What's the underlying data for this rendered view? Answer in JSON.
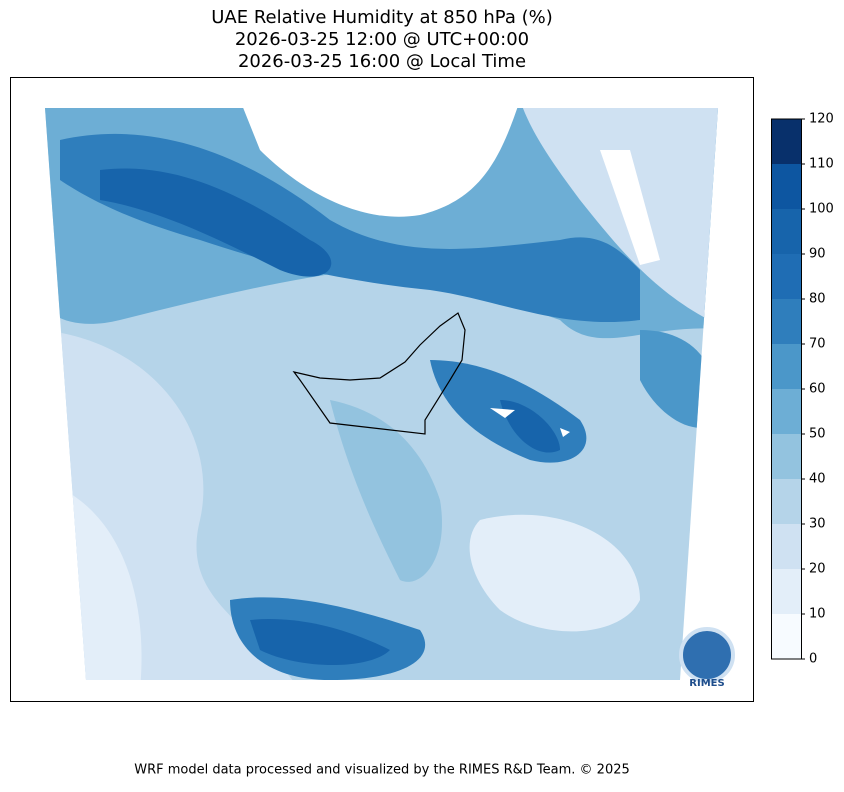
{
  "title": [
    "UAE Relative Humidity at 850 hPa (%)",
    "2026-03-25 12:00 @ UTC+00:00",
    "2026-03-25 16:00 @ Local Time"
  ],
  "colorbar": {
    "lim": [
      0,
      120
    ],
    "ticks": [
      0,
      10,
      20,
      30,
      40,
      50,
      60,
      70,
      80,
      90,
      100,
      110,
      120
    ],
    "colors": [
      "#f7fbff",
      "#e3eef9",
      "#cfe1f2",
      "#b5d4e9",
      "#93c3df",
      "#6daed5",
      "#4b97c9",
      "#2f7ebc",
      "#1f6db4",
      "#1764ab",
      "#0d56a1",
      "#08306b"
    ]
  },
  "logo": "RIMES",
  "footer": "WRF model data processed and visualized by the RIMES R&D Team. © 2025"
}
